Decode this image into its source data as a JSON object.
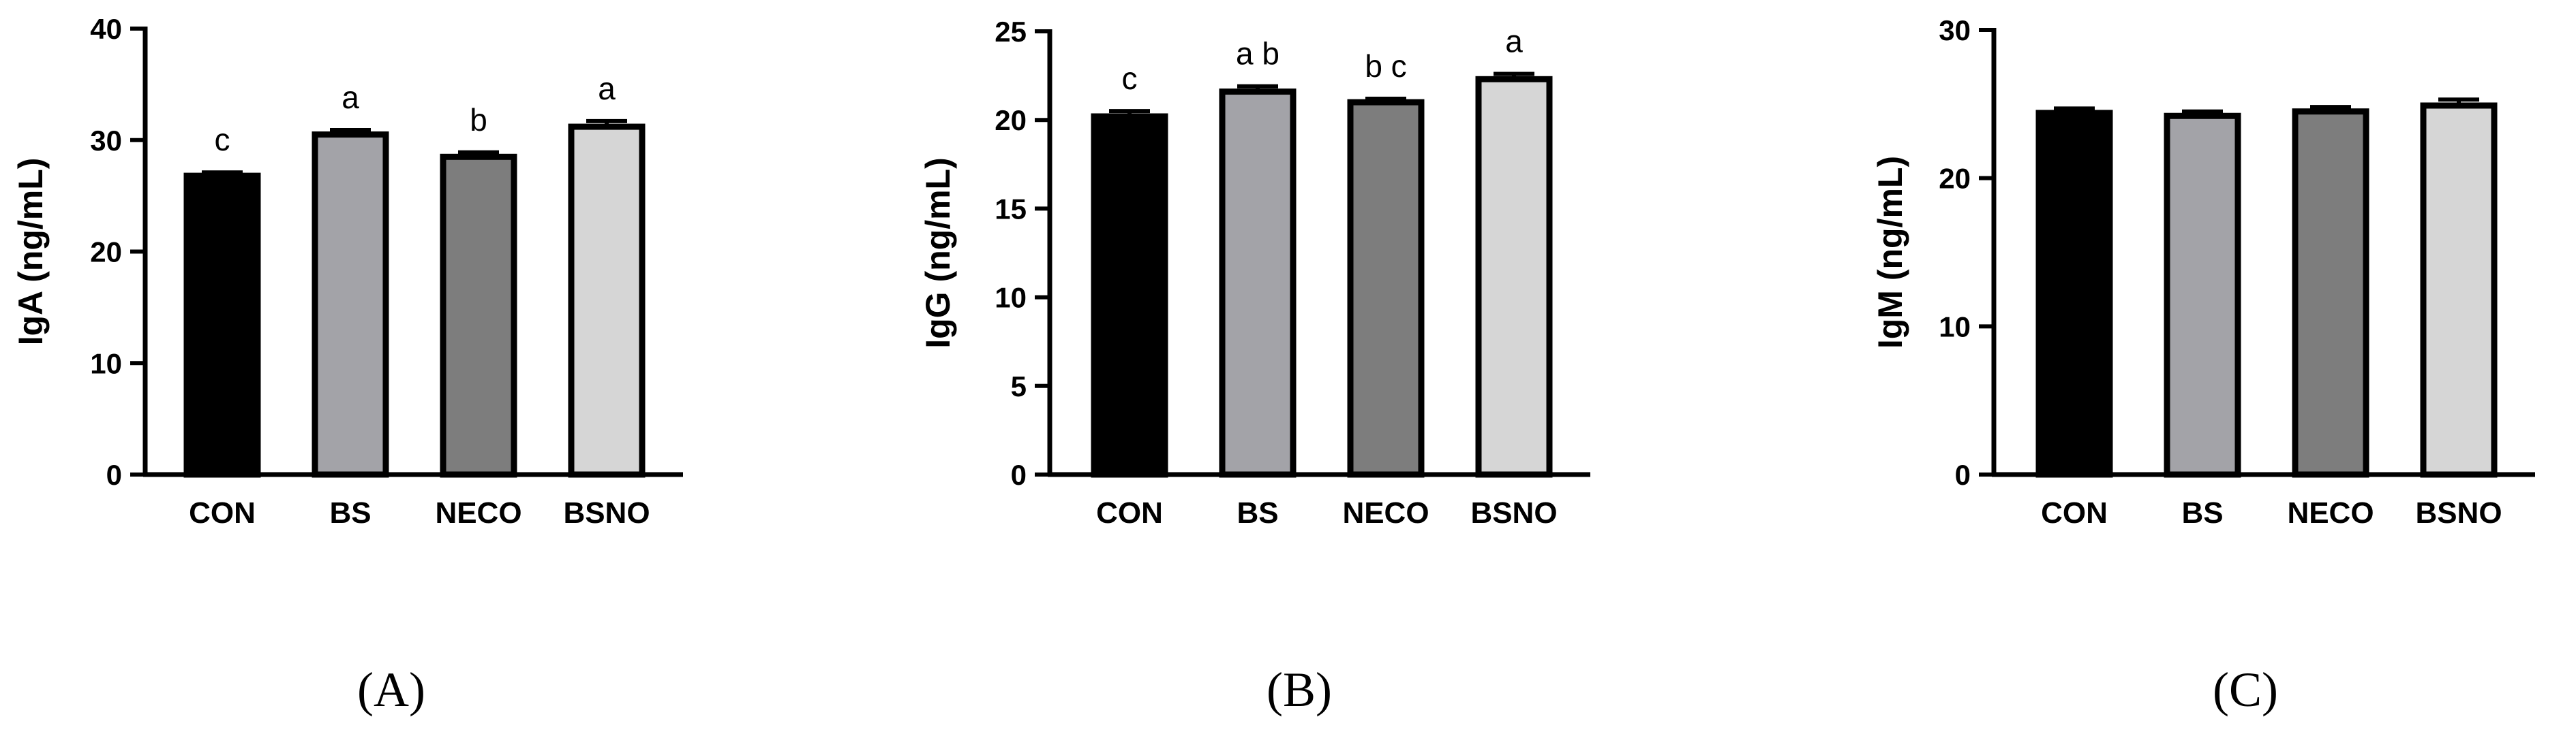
{
  "chart_data": [
    {
      "type": "bar",
      "panel_label": "(A)",
      "ylabel": "IgA (ng/mL)",
      "ylim": [
        0,
        40
      ],
      "yticks": [
        0,
        10,
        20,
        30,
        40
      ],
      "categories": [
        "CON",
        "BS",
        "NECO",
        "BSNO"
      ],
      "values": [
        26.8,
        30.5,
        28.5,
        31.2
      ],
      "errors": [
        0.3,
        0.4,
        0.4,
        0.5
      ],
      "significance": [
        "c",
        "a",
        "b",
        "a"
      ],
      "colors": [
        "#000000",
        "#a3a3a8",
        "#7d7d7d",
        "#d6d6d6"
      ]
    },
    {
      "type": "bar",
      "panel_label": "(B)",
      "ylabel": "IgG (ng/mL)",
      "ylim": [
        0,
        25
      ],
      "yticks": [
        0,
        5,
        10,
        15,
        20,
        25
      ],
      "categories": [
        "CON",
        "BS",
        "NECO",
        "BSNO"
      ],
      "values": [
        20.2,
        21.6,
        21.0,
        22.3
      ],
      "errors": [
        0.3,
        0.3,
        0.2,
        0.3
      ],
      "significance": [
        "c",
        "a b",
        "b c",
        "a"
      ],
      "colors": [
        "#000000",
        "#a3a3a8",
        "#7d7d7d",
        "#d6d6d6"
      ]
    },
    {
      "type": "bar",
      "panel_label": "(C)",
      "ylabel": "IgM (ng/mL)",
      "ylim": [
        0,
        30
      ],
      "yticks": [
        0,
        10,
        20,
        30
      ],
      "categories": [
        "CON",
        "BS",
        "NECO",
        "BSNO"
      ],
      "values": [
        24.4,
        24.2,
        24.5,
        24.9
      ],
      "errors": [
        0.3,
        0.3,
        0.3,
        0.4
      ],
      "significance": [
        "",
        "",
        "",
        ""
      ],
      "colors": [
        "#000000",
        "#a3a3a8",
        "#7d7d7d",
        "#d6d6d6"
      ]
    }
  ]
}
